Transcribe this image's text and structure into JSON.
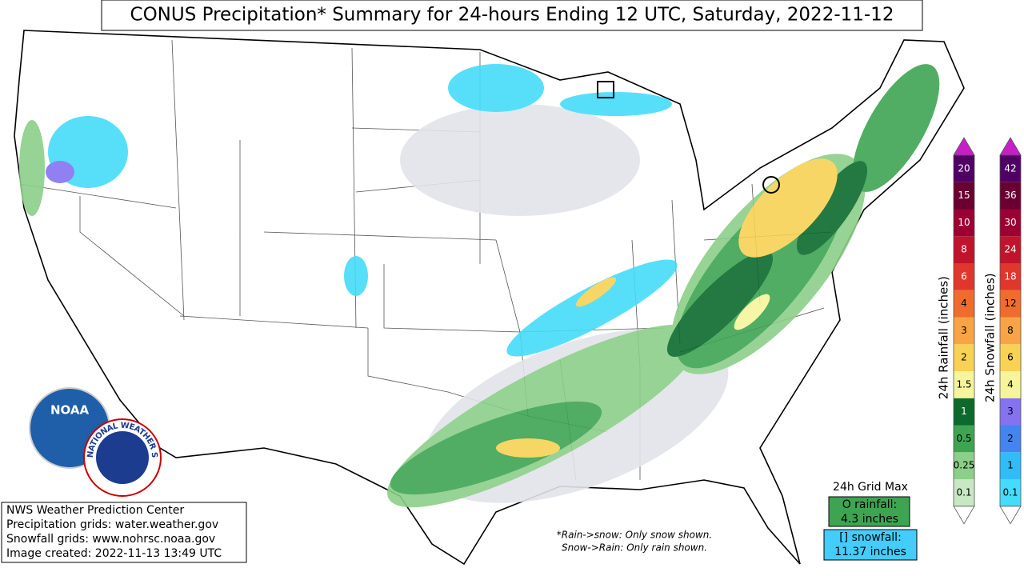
{
  "header": {
    "title": "CONUS Precipitation* Summary for 24-hours Ending 12 UTC, Saturday, 2022-11-12"
  },
  "logos": {
    "noaa": "NOAA",
    "nws": "NATIONAL WEATHER SERVICE"
  },
  "credits": [
    "NWS Weather Prediction Center",
    "Precipitation grids: water.weather.gov",
    "Snowfall grids: www.nohrsc.noaa.gov",
    "Image created: 2022-11-13 13:49 UTC"
  ],
  "notes": [
    "*Rain->snow: Only snow shown.",
    "Snow->Rain: Only rain shown."
  ],
  "grid_max": {
    "title": "24h Grid Max",
    "rainfall": [
      "O rainfall:",
      "4.3 inches"
    ],
    "snowfall": [
      "[] snowfall:",
      "11.37 inches"
    ]
  },
  "legends": [
    {
      "title": "24h Rainfall (inches)",
      "over_color": "#c81ec8",
      "items": [
        {
          "label": "0.1",
          "color": "#c8e8c4"
        },
        {
          "label": "0.25",
          "color": "#8ccf88"
        },
        {
          "label": "0.5",
          "color": "#3ea452"
        },
        {
          "label": "1",
          "color": "#0b6a2c"
        },
        {
          "label": "1.5",
          "color": "#f6f59c"
        },
        {
          "label": "2",
          "color": "#f8d254"
        },
        {
          "label": "3",
          "color": "#f8a444"
        },
        {
          "label": "4",
          "color": "#f06c2c"
        },
        {
          "label": "6",
          "color": "#e0362c"
        },
        {
          "label": "8",
          "color": "#c0142c"
        },
        {
          "label": "10",
          "color": "#9c0032"
        },
        {
          "label": "15",
          "color": "#6a0032"
        },
        {
          "label": "20",
          "color": "#500064"
        }
      ]
    },
    {
      "title": "24h Snowfall (inches)",
      "over_color": "#c81ec8",
      "items": [
        {
          "label": "0.1",
          "color": "#44dcfa"
        },
        {
          "label": "1",
          "color": "#30bcf8"
        },
        {
          "label": "2",
          "color": "#4484f0"
        },
        {
          "label": "3",
          "color": "#8472f0"
        },
        {
          "label": "4",
          "color": "#f6f59c"
        },
        {
          "label": "6",
          "color": "#f8d254"
        },
        {
          "label": "8",
          "color": "#f8a444"
        },
        {
          "label": "12",
          "color": "#f06c2c"
        },
        {
          "label": "18",
          "color": "#e0362c"
        },
        {
          "label": "24",
          "color": "#c0142c"
        },
        {
          "label": "30",
          "color": "#9c0032"
        },
        {
          "label": "36",
          "color": "#6a0032"
        },
        {
          "label": "42",
          "color": "#500064"
        }
      ]
    }
  ]
}
